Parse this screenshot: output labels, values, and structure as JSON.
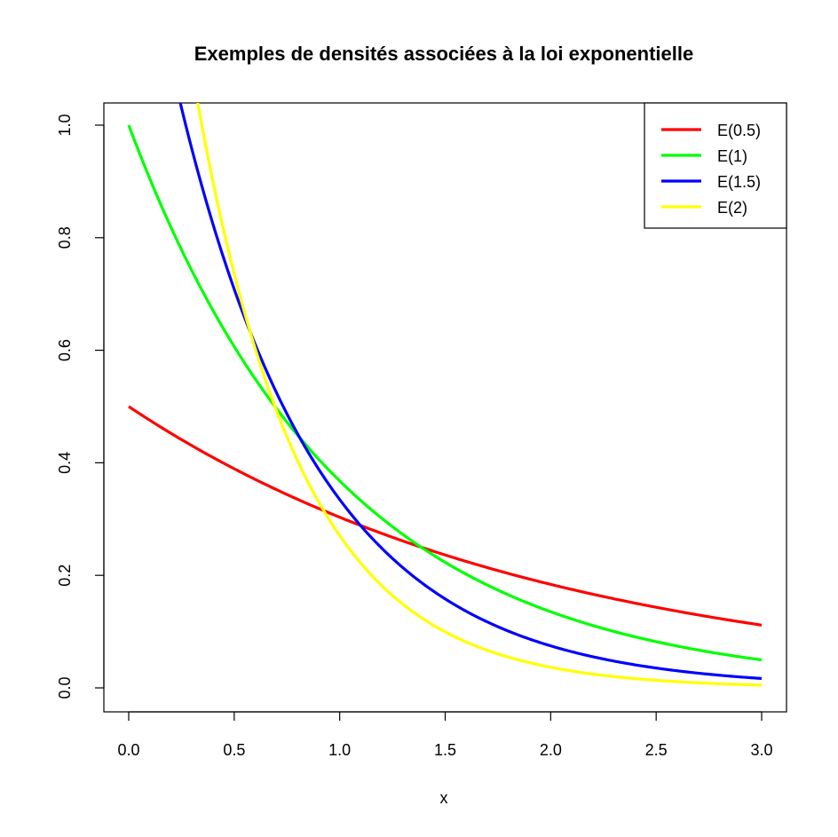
{
  "chart_data": {
    "type": "line",
    "title": "Exemples de densités associées à la loi exponentielle",
    "xlabel": "x",
    "ylabel": "",
    "xlim": [
      0,
      3
    ],
    "ylim": [
      0,
      1
    ],
    "x_ticks": [
      "0.0",
      "0.5",
      "1.0",
      "1.5",
      "2.0",
      "2.5",
      "3.0"
    ],
    "y_ticks": [
      "0.0",
      "0.2",
      "0.4",
      "0.6",
      "0.8",
      "1.0"
    ],
    "grid": false,
    "legend_position": "top-right",
    "series": [
      {
        "name": "E(0.5)",
        "rate": 0.5,
        "color": "#ff0000"
      },
      {
        "name": "E(1)",
        "rate": 1,
        "color": "#00ff00"
      },
      {
        "name": "E(1.5)",
        "rate": 1.5,
        "color": "#0000ff"
      },
      {
        "name": "E(2)",
        "rate": 2,
        "color": "#ffff00"
      }
    ]
  }
}
